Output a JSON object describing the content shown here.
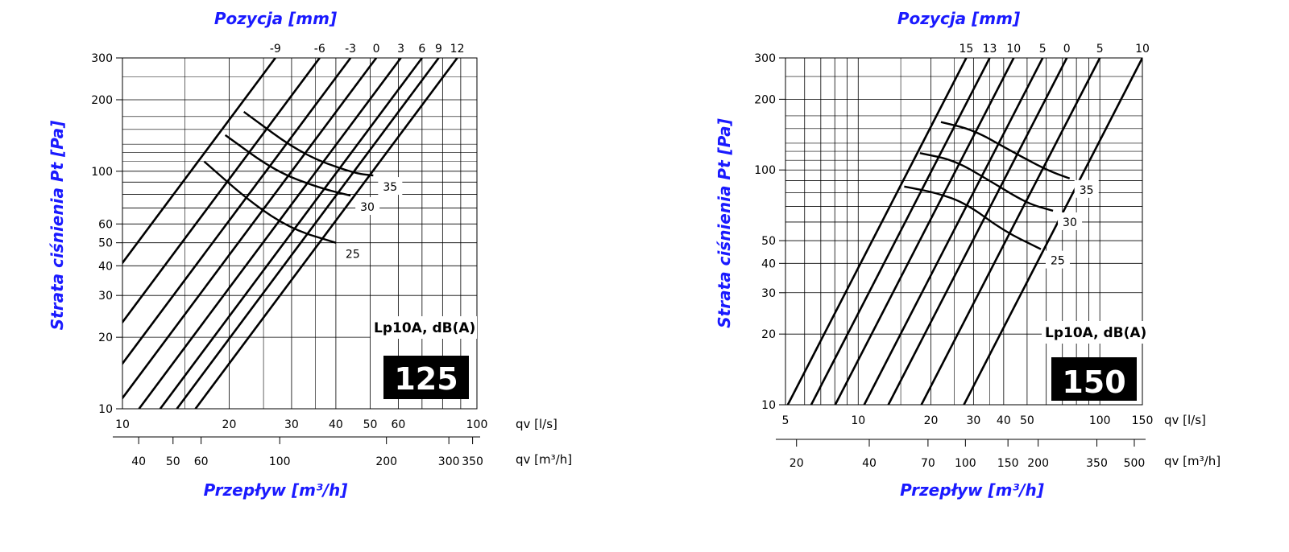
{
  "colors": {
    "title": "#1a1aff",
    "line": "#000000",
    "badge": "#000000"
  },
  "chart_data": [
    {
      "type": "line",
      "size": "125",
      "title": "Pozycja [mm]",
      "ylabel": "Strata ciśnienia Pt [Pa]",
      "xlabel": "Przepływ [m³/h]",
      "x_unit_ls": "qv [l/s]",
      "x_unit_m3h": "qv [m³/h]",
      "noise_label": "Lp10A, dB(A)",
      "xlim": [
        10,
        100
      ],
      "ylim": [
        10,
        300
      ],
      "yscale": "log",
      "xscale": "log",
      "grid": true,
      "y_ticks": [
        10,
        20,
        30,
        40,
        50,
        60,
        100,
        200,
        300
      ],
      "x_ticks_ls": [
        10,
        20,
        30,
        40,
        50,
        60,
        100
      ],
      "x_ticks_m3h": [
        40,
        50,
        60,
        100,
        200,
        300,
        350
      ],
      "position_labels": [
        "-9",
        "-6",
        "-3",
        "0",
        "3",
        "6",
        "9",
        "12"
      ],
      "position_lines": [
        {
          "x_at_300": 27
        },
        {
          "x_at_300": 36
        },
        {
          "x_at_300": 44
        },
        {
          "x_at_300": 52
        },
        {
          "x_at_300": 61
        },
        {
          "x_at_300": 70
        },
        {
          "x_at_300": 78
        },
        {
          "x_at_300": 88
        }
      ],
      "noise_curves": [
        {
          "label": "35",
          "points": [
            [
              22,
              178
            ],
            [
              32,
              118
            ],
            [
              45,
              98
            ],
            [
              51,
              96
            ]
          ]
        },
        {
          "label": "30",
          "points": [
            [
              19.5,
              142
            ],
            [
              27,
              100
            ],
            [
              36,
              85
            ],
            [
              44,
              79
            ]
          ]
        },
        {
          "label": "25",
          "points": [
            [
              17,
              110
            ],
            [
              23,
              74
            ],
            [
              30,
              57
            ],
            [
              40,
              50
            ]
          ]
        }
      ]
    },
    {
      "type": "line",
      "size": "150",
      "title": "Pozycja [mm]",
      "ylabel": "Strata ciśnienia Pt [Pa]",
      "xlabel": "Przepływ [m³/h]",
      "x_unit_ls": "qv [l/s]",
      "x_unit_m3h": "qv [m³/h]",
      "noise_label": "Lp10A, dB(A)",
      "xlim": [
        5,
        150
      ],
      "ylim": [
        10,
        300
      ],
      "yscale": "log",
      "xscale": "log",
      "grid": true,
      "y_ticks": [
        10,
        20,
        30,
        40,
        50,
        100,
        200,
        300
      ],
      "x_ticks_ls": [
        5,
        10,
        20,
        30,
        40,
        50,
        100,
        150
      ],
      "x_ticks_m3h": [
        20,
        40,
        70,
        100,
        150,
        200,
        350,
        500
      ],
      "position_labels": [
        "15",
        "13",
        "10",
        "5",
        "0",
        "5",
        "10"
      ],
      "position_lines": [
        {
          "x_at_300": 28
        },
        {
          "x_at_300": 35
        },
        {
          "x_at_300": 44
        },
        {
          "x_at_300": 58
        },
        {
          "x_at_300": 73
        },
        {
          "x_at_300": 100
        },
        {
          "x_at_300": 150
        }
      ],
      "noise_curves": [
        {
          "label": "35",
          "points": [
            [
              22,
              160
            ],
            [
              30,
              148
            ],
            [
              42,
              122
            ],
            [
              60,
              100
            ],
            [
              75,
              92
            ]
          ]
        },
        {
          "label": "30",
          "points": [
            [
              18,
              118
            ],
            [
              25,
              110
            ],
            [
              35,
              90
            ],
            [
              50,
              72
            ],
            [
              64,
              67
            ]
          ]
        },
        {
          "label": "25",
          "points": [
            [
              15.5,
              85
            ],
            [
              21,
              80
            ],
            [
              28,
              72
            ],
            [
              40,
              55
            ],
            [
              57,
              46
            ]
          ]
        }
      ]
    }
  ]
}
